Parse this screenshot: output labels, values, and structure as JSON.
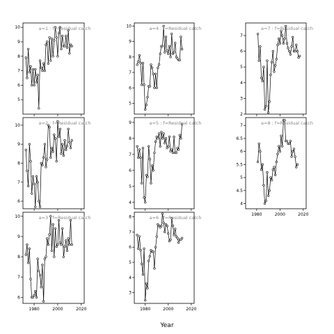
{
  "chart_data": {
    "type": "line",
    "xlabel": "Year",
    "x": [
      1973,
      1974,
      1975,
      1976,
      1977,
      1978,
      1979,
      1980,
      1981,
      1982,
      1983,
      1984,
      1985,
      1986,
      1987,
      1988,
      1989,
      1990,
      1991,
      1992,
      1993,
      1994,
      1995,
      1996,
      1997,
      1998,
      1999,
      2000,
      2001,
      2002,
      2003,
      2004,
      2005,
      2006,
      2007,
      2008,
      2009,
      2010,
      2011,
      2012,
      2013,
      2014,
      2015,
      2016,
      2017,
      2018,
      2019,
      2020
    ],
    "xticks": [
      1980,
      2000,
      2020
    ],
    "panels": [
      {
        "title": "a=1 :  f=Residual catch",
        "ylim": [
          4,
          10.3
        ],
        "yticks": [
          5,
          6,
          7,
          8,
          9,
          10
        ],
        "values": [
          7.9,
          6.5,
          8.5,
          6.9,
          7.3,
          6.0,
          7.1,
          6.0,
          7.1,
          6.2,
          6.7,
          4.4,
          7.7,
          7.2,
          7.0,
          7.5,
          7.0,
          8.8,
          9.0,
          7.5,
          9.3,
          7.7,
          9.2,
          8.0,
          9.1,
          10.0,
          9.3,
          8.0,
          9.6,
          10.0,
          8.5,
          9.4,
          8.7,
          8.7,
          9.4,
          8.6,
          9.8,
          8.2,
          8.8,
          8.7,
          null,
          null,
          null,
          null,
          null,
          null,
          null,
          null
        ]
      },
      {
        "title": "a=2 :  f=Residual catch",
        "ylim": [
          5.6,
          10.4
        ],
        "yticks": [
          6,
          7,
          8,
          9,
          10
        ],
        "values": [
          8.7,
          7.6,
          6.8,
          9.0,
          8.1,
          6.4,
          7.3,
          6.9,
          5.7,
          7.3,
          7.0,
          6.0,
          5.7,
          8.0,
          7.9,
          8.3,
          9.0,
          7.8,
          8.2,
          10.0,
          9.9,
          8.3,
          8.8,
          8.6,
          9.5,
          9.3,
          8.1,
          10.2,
          9.4,
          9.8,
          8.5,
          9.0,
          8.4,
          9.2,
          8.7,
          8.9,
          9.8,
          9.1,
          8.8,
          9.2,
          null,
          null,
          null,
          null,
          null,
          null,
          null,
          null
        ]
      },
      {
        "title": "a=3 :  f=Residual catch",
        "ylim": [
          5.7,
          10.2
        ],
        "yticks": [
          6,
          7,
          8,
          9,
          10
        ],
        "values": [
          8.1,
          8.6,
          7.7,
          8.4,
          6.9,
          6.0,
          6.0,
          6.1,
          6.3,
          6.0,
          7.9,
          7.3,
          7.1,
          6.5,
          7.6,
          5.8,
          7.9,
          8.0,
          8.9,
          8.6,
          9.1,
          10.0,
          8.3,
          9.6,
          8.0,
          9.4,
          8.5,
          8.6,
          9.8,
          8.7,
          8.6,
          9.4,
          8.0,
          8.5,
          8.8,
          8.3,
          8.9,
          8.6,
          9.8,
          8.6,
          null,
          null,
          null,
          null,
          null,
          null,
          null,
          null
        ]
      },
      {
        "title": "a=4 :  f=Residual catch",
        "ylim": [
          4.3,
          10.2
        ],
        "yticks": [
          5,
          6,
          7,
          8,
          9,
          10
        ],
        "values": [
          7.5,
          7.7,
          8.1,
          7.6,
          6.2,
          7.6,
          6.2,
          4.6,
          4.9,
          5.4,
          6.1,
          6.1,
          7.5,
          7.3,
          6.9,
          6.0,
          6.9,
          6.0,
          7.3,
          7.5,
          8.2,
          8.7,
          8.7,
          10.0,
          8.3,
          9.3,
          8.4,
          8.2,
          8.7,
          8.0,
          9.5,
          8.2,
          8.3,
          8.9,
          8.0,
          7.9,
          7.8,
          7.8,
          9.3,
          8.5,
          null,
          null,
          null,
          null,
          null,
          null,
          null,
          null
        ]
      },
      {
        "title": "a=5 :  f=Residual catch",
        "ylim": [
          3.6,
          9.3
        ],
        "yticks": [
          4,
          5,
          6,
          7,
          8,
          9
        ],
        "values": [
          7.5,
          6.8,
          7.3,
          6.8,
          5.2,
          7.4,
          4.3,
          4.0,
          5.7,
          5.6,
          7.5,
          6.7,
          5.2,
          6.3,
          6.0,
          7.1,
          7.8,
          8.1,
          8.0,
          8.3,
          7.5,
          8.4,
          8.0,
          8.3,
          7.7,
          8.0,
          7.4,
          7.5,
          8.1,
          7.2,
          7.3,
          7.1,
          8.1,
          7.1,
          7.1,
          7.4,
          7.3,
          8.2,
          8.0,
          8.9,
          null,
          null,
          null,
          null,
          null,
          null,
          null,
          null
        ]
      },
      {
        "title": "a=6 :  f=Residual catch",
        "ylim": [
          2.3,
          8.3
        ],
        "yticks": [
          3,
          4,
          5,
          6,
          7,
          8
        ],
        "values": [
          6.8,
          5.9,
          6.7,
          5.8,
          4.9,
          4.2,
          5.9,
          2.5,
          3.6,
          3.3,
          5.1,
          5.4,
          5.8,
          5.7,
          5.7,
          4.6,
          6.0,
          6.7,
          7.5,
          7.4,
          7.3,
          7.4,
          8.2,
          7.6,
          7.0,
          7.5,
          7.4,
          6.9,
          6.4,
          6.5,
          7.9,
          7.4,
          6.8,
          7.2,
          6.7,
          6.6,
          6.3,
          6.5,
          6.5,
          6.6,
          null,
          null,
          null,
          null,
          null,
          null,
          null,
          null
        ]
      },
      {
        "title": "a=7 :  f=Residual catch",
        "ylim": [
          2.0,
          7.8
        ],
        "yticks": [
          2,
          3,
          4,
          5,
          6,
          7
        ],
        "values": [
          null,
          null,
          null,
          null,
          null,
          null,
          null,
          null,
          7.1,
          5.4,
          6.3,
          4.3,
          4.1,
          5.0,
          2.3,
          2.5,
          5.4,
          2.1,
          2.8,
          4.5,
          5.3,
          6.0,
          4.7,
          5.1,
          5.5,
          6.4,
          6.8,
          6.5,
          7.3,
          7.0,
          6.5,
          6.8,
          7.6,
          6.5,
          6.2,
          6.0,
          5.8,
          6.3,
          6.9,
          6.0,
          6.0,
          6.4,
          6.0,
          5.6,
          5.7,
          null,
          null,
          null
        ]
      },
      {
        "title": "a=8 :  f=Residual catch",
        "ylim": [
          3.8,
          7.3
        ],
        "yticks": [
          4.0,
          4.5,
          5.0,
          5.5,
          6.0,
          6.5,
          7.0
        ],
        "values": [
          null,
          null,
          null,
          null,
          null,
          null,
          null,
          null,
          5.6,
          6.3,
          6.0,
          5.3,
          5.5,
          4.7,
          4.0,
          4.1,
          5.2,
          4.3,
          4.5,
          5.0,
          4.9,
          5.3,
          5.4,
          5.1,
          5.6,
          5.9,
          6.2,
          6.0,
          6.6,
          6.2,
          7.2,
          7.2,
          6.4,
          6.4,
          6.3,
          6.3,
          6.4,
          5.8,
          6.0,
          6.1,
          5.8,
          5.4,
          5.5,
          null,
          null,
          null,
          null,
          null
        ]
      }
    ]
  }
}
